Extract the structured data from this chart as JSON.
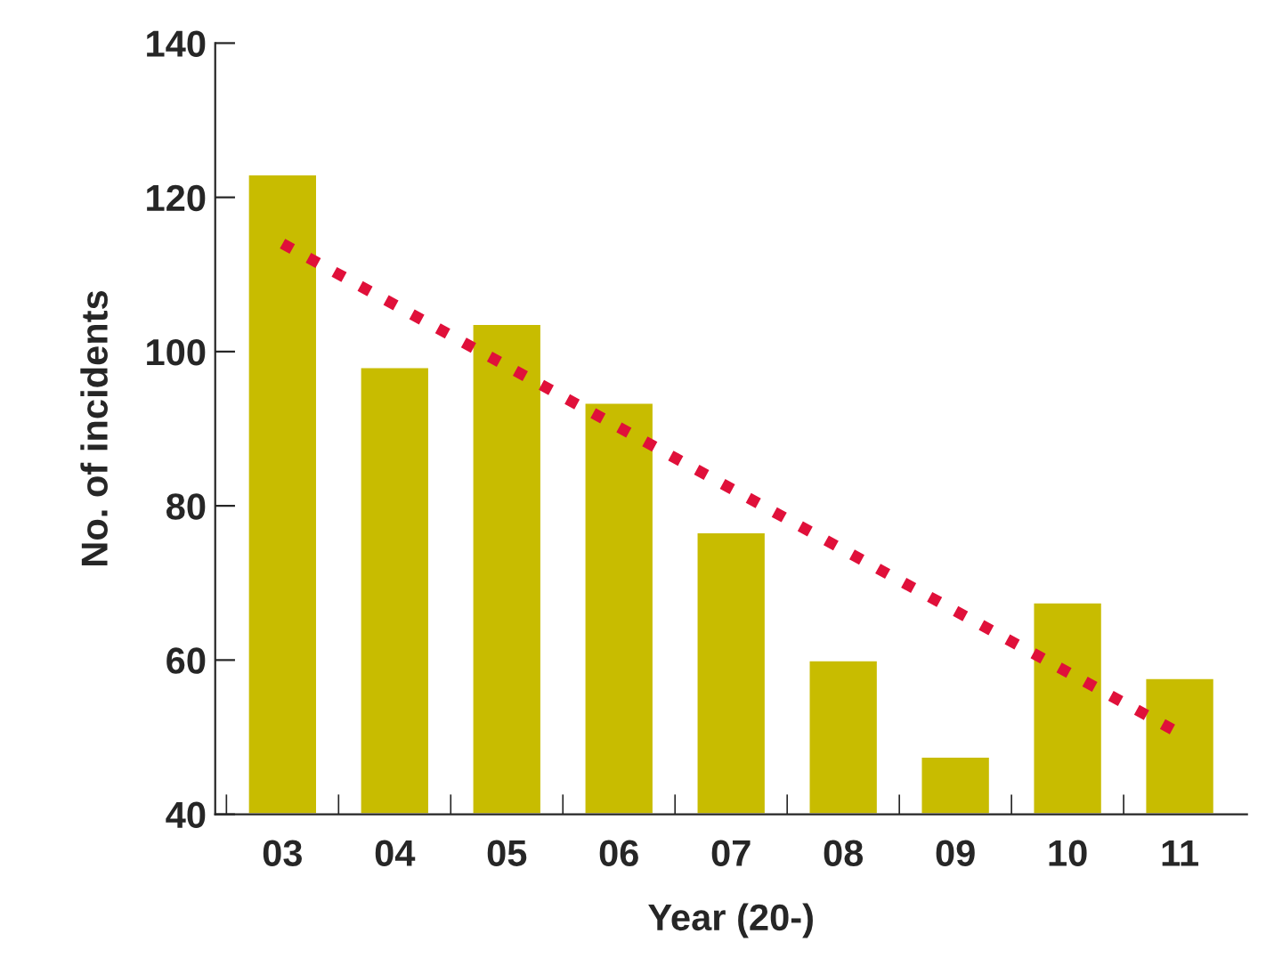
{
  "chart_data": {
    "type": "bar",
    "xlabel": "Year (20-)",
    "ylabel": "No. of incidents",
    "categories": [
      "03",
      "04",
      "05",
      "06",
      "07",
      "08",
      "09",
      "10",
      "11"
    ],
    "series": [
      {
        "color": "#c8bc00",
        "values": [
          123,
          98,
          103.6,
          93.4,
          76.6,
          60,
          47.5,
          67.5,
          57.7
        ]
      },
      {
        "type": "line",
        "color": "#e0103a",
        "x": [
          "03",
          "11"
        ],
        "values": [
          114,
          50.5
        ],
        "line_style": "dotted"
      }
    ],
    "ylim": [
      40,
      140
    ],
    "yticks": [
      40,
      60,
      80,
      100,
      120,
      140
    ],
    "grid": false,
    "legend": false
  }
}
